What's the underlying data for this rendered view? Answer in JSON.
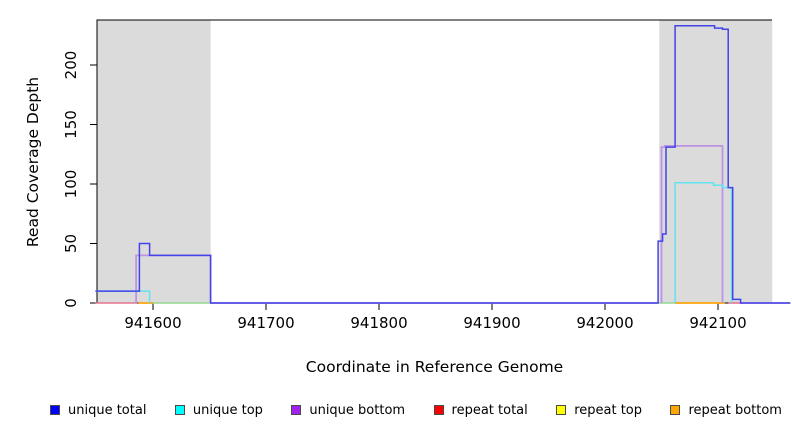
{
  "chart_data": {
    "type": "step-line",
    "title": "",
    "xlabel": "Coordinate in Reference Genome",
    "ylabel": "Read Coverage Depth",
    "x_ticks": [
      941600,
      941700,
      941800,
      941900,
      942000,
      942100
    ],
    "y_ticks": [
      0,
      50,
      100,
      150,
      200
    ],
    "xlim": [
      941549,
      942164
    ],
    "ylim": [
      0,
      238
    ],
    "grid": false,
    "highlight_bands": [
      {
        "x1": 941550,
        "x2": 941651
      },
      {
        "x1": 942048,
        "x2": 942148
      }
    ],
    "band_color": "#DBDBDB",
    "series": [
      {
        "name": "repeat total",
        "color": "#E5738F",
        "width": 1.6,
        "segments": [
          [
            [
              941549,
              0
            ],
            [
              941586,
              0
            ]
          ],
          [
            [
              942109,
              0
            ],
            [
              942122,
              0
            ]
          ]
        ]
      },
      {
        "name": "repeat top",
        "color": "#93D793",
        "width": 1.5,
        "segments": [
          [
            [
              941598,
              0
            ],
            [
              941651,
              0
            ]
          ],
          [
            [
              942047,
              0
            ],
            [
              942062,
              0
            ]
          ]
        ]
      },
      {
        "name": "repeat bottom",
        "color": "#FFA40B",
        "width": 1.7,
        "segments": [
          [
            [
              941587,
              0
            ],
            [
              941600,
              0
            ]
          ],
          [
            [
              942062,
              0
            ],
            [
              942106,
              0
            ]
          ]
        ]
      },
      {
        "name": "unique bottom",
        "color": "#BD93E4",
        "width": 1.8,
        "segments": [
          [
            [
              941585,
              0
            ],
            [
              941585,
              40
            ],
            [
              941651,
              40
            ],
            [
              941651,
              0
            ]
          ],
          [
            [
              941651,
              0
            ],
            [
              942047,
              0
            ]
          ],
          [
            [
              942050,
              0
            ],
            [
              942050,
              131
            ],
            [
              942053,
              131
            ],
            [
              942053,
              132
            ],
            [
              942104,
              132
            ],
            [
              942104,
              0
            ]
          ],
          [
            [
              942120,
              0
            ],
            [
              942164,
              0
            ]
          ]
        ]
      },
      {
        "name": "unique top",
        "color": "#63E3F2",
        "width": 1.5,
        "segments": [
          [
            [
              941549,
              10
            ],
            [
              941597,
              10
            ],
            [
              941597,
              0
            ]
          ],
          [
            [
              942062,
              0
            ],
            [
              942062,
              101
            ],
            [
              942096,
              101
            ],
            [
              942096,
              99
            ],
            [
              942104,
              99
            ],
            [
              942104,
              97
            ],
            [
              942112,
              97
            ],
            [
              942112,
              0
            ]
          ]
        ]
      },
      {
        "name": "unique total",
        "color": "#4343E8",
        "width": 1.5,
        "segments": [
          [
            [
              941549,
              10
            ],
            [
              941588,
              10
            ],
            [
              941588,
              50
            ],
            [
              941597,
              50
            ],
            [
              941597,
              40
            ],
            [
              941651,
              40
            ],
            [
              941651,
              0
            ],
            [
              942047,
              0
            ],
            [
              942047,
              52
            ],
            [
              942051,
              52
            ],
            [
              942051,
              58
            ],
            [
              942054,
              58
            ],
            [
              942054,
              131
            ],
            [
              942062,
              131
            ],
            [
              942062,
              233
            ],
            [
              942097,
              233
            ],
            [
              942097,
              231
            ],
            [
              942104,
              231
            ],
            [
              942104,
              230
            ],
            [
              942109,
              230
            ],
            [
              942109,
              97
            ],
            [
              942113,
              97
            ],
            [
              942113,
              3
            ],
            [
              942120,
              3
            ],
            [
              942120,
              0
            ],
            [
              942164,
              0
            ]
          ]
        ]
      }
    ]
  },
  "legend": {
    "items": [
      {
        "label": "unique total",
        "color": "#0000FF"
      },
      {
        "label": "unique top",
        "color": "#00FFFF"
      },
      {
        "label": "unique bottom",
        "color": "#A020F0"
      },
      {
        "label": "repeat total",
        "color": "#FF0000"
      },
      {
        "label": "repeat top",
        "color": "#FFFF00"
      },
      {
        "label": "repeat bottom",
        "color": "#FFA500"
      }
    ]
  }
}
